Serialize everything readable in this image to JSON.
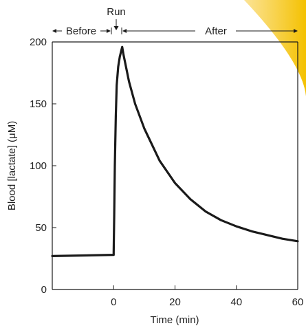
{
  "chart_data": {
    "type": "line",
    "title": "",
    "xlabel": "Time (min)",
    "ylabel": "Blood [lactate] (μM)",
    "xlim": [
      -20,
      60
    ],
    "ylim": [
      0,
      200
    ],
    "xticks": [
      0,
      20,
      40,
      60
    ],
    "yticks": [
      0,
      50,
      100,
      150,
      200
    ],
    "grid": false,
    "legend": "none",
    "phases": [
      {
        "label": "Before",
        "from": -20,
        "to": 0
      },
      {
        "label": "Run",
        "at": 0.5
      },
      {
        "label": "After",
        "from": 3,
        "to": 60
      }
    ],
    "series": [
      {
        "color": "#1a1a1a",
        "points": [
          [
            -20,
            27
          ],
          [
            0,
            28
          ],
          [
            0,
            30
          ],
          [
            0.2,
            60
          ],
          [
            0.4,
            100
          ],
          [
            0.7,
            140
          ],
          [
            1.0,
            165
          ],
          [
            1.5,
            180
          ],
          [
            2.0,
            188
          ],
          [
            2.5,
            193
          ],
          [
            2.8,
            196
          ],
          [
            3.2,
            190
          ],
          [
            5,
            168
          ],
          [
            7,
            150
          ],
          [
            10,
            130
          ],
          [
            15,
            104
          ],
          [
            20,
            86
          ],
          [
            25,
            73
          ],
          [
            30,
            63
          ],
          [
            35,
            56
          ],
          [
            40,
            51
          ],
          [
            45,
            47
          ],
          [
            50,
            44
          ],
          [
            55,
            41
          ],
          [
            60,
            39
          ]
        ]
      }
    ],
    "watermark_color": "#f4c100"
  }
}
